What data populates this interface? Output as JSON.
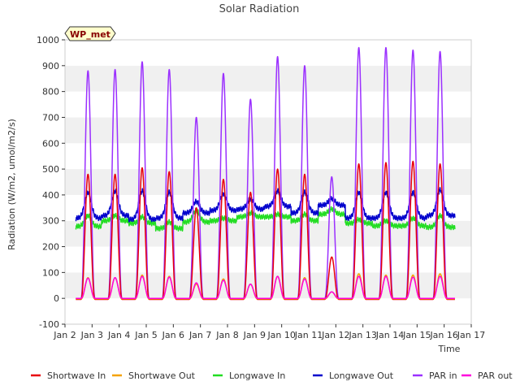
{
  "chart_data": {
    "type": "line",
    "title": "Solar Radiation",
    "xlabel": "Time",
    "ylabel": "Radiation (W/m2, umol/m2/s)",
    "ylim": [
      -100,
      1000
    ],
    "yticks": [
      -100,
      0,
      100,
      200,
      300,
      400,
      500,
      600,
      700,
      800,
      900,
      1000
    ],
    "xlim": [
      2,
      17
    ],
    "xticks": [
      {
        "v": 2,
        "label": "Jan 2"
      },
      {
        "v": 3,
        "label": "Jan 3"
      },
      {
        "v": 4,
        "label": "Jan 4"
      },
      {
        "v": 5,
        "label": "Jan 5"
      },
      {
        "v": 6,
        "label": "Jan 6"
      },
      {
        "v": 7,
        "label": "Jan 7"
      },
      {
        "v": 8,
        "label": "Jan 8"
      },
      {
        "v": 9,
        "label": "Jan 9"
      },
      {
        "v": 10,
        "label": "Jan 10"
      },
      {
        "v": 11,
        "label": "Jan 11"
      },
      {
        "v": 12,
        "label": "Jan 12"
      },
      {
        "v": 13,
        "label": "Jan 13"
      },
      {
        "v": 14,
        "label": "Jan 14"
      },
      {
        "v": 15,
        "label": "Jan 15"
      },
      {
        "v": 16,
        "label": "Jan 16"
      },
      {
        "v": 17,
        "label": "Jan 17"
      }
    ],
    "annotation": "WP_met",
    "legend_position": "bottom",
    "data_range_days": [
      2.4,
      16.4
    ],
    "days": [
      2.85,
      3.85,
      4.85,
      5.85,
      6.85,
      7.85,
      8.85,
      9.85,
      10.85,
      11.85,
      12.85,
      13.85,
      14.85,
      15.85
    ],
    "series": [
      {
        "name": "Shortwave In",
        "color": "#e8000b",
        "daily_peaks": [
          480,
          480,
          505,
          490,
          350,
          460,
          410,
          500,
          480,
          160,
          520,
          525,
          530,
          520
        ],
        "night": -4
      },
      {
        "name": "Shortwave Out",
        "color": "#f5a300",
        "daily_peaks": [
          80,
          80,
          90,
          85,
          55,
          75,
          55,
          85,
          80,
          25,
          95,
          90,
          90,
          95
        ],
        "night": -2
      },
      {
        "name": "Longwave In",
        "color": "#22dd22",
        "daily_night": [
          278,
          300,
          290,
          270,
          295,
          300,
          315,
          315,
          300,
          325,
          290,
          280,
          280,
          275
        ],
        "daily_peaks": [
          320,
          320,
          315,
          295,
          340,
          310,
          330,
          325,
          325,
          345,
          305,
          300,
          310,
          320
        ]
      },
      {
        "name": "Longwave Out",
        "color": "#0000cc",
        "daily_night": [
          310,
          320,
          305,
          310,
          330,
          340,
          345,
          355,
          330,
          360,
          310,
          310,
          310,
          320
        ],
        "daily_peaks": [
          410,
          415,
          415,
          410,
          375,
          405,
          385,
          415,
          410,
          385,
          410,
          410,
          410,
          420
        ]
      },
      {
        "name": "PAR in",
        "color": "#9b30ff",
        "daily_peaks": [
          880,
          885,
          915,
          885,
          700,
          870,
          770,
          935,
          900,
          470,
          970,
          970,
          960,
          955
        ],
        "night": 0
      },
      {
        "name": "PAR out",
        "color": "#ff00dd",
        "daily_peaks": [
          78,
          80,
          85,
          82,
          60,
          70,
          55,
          85,
          75,
          25,
          85,
          85,
          82,
          85
        ],
        "night": 0
      }
    ]
  }
}
